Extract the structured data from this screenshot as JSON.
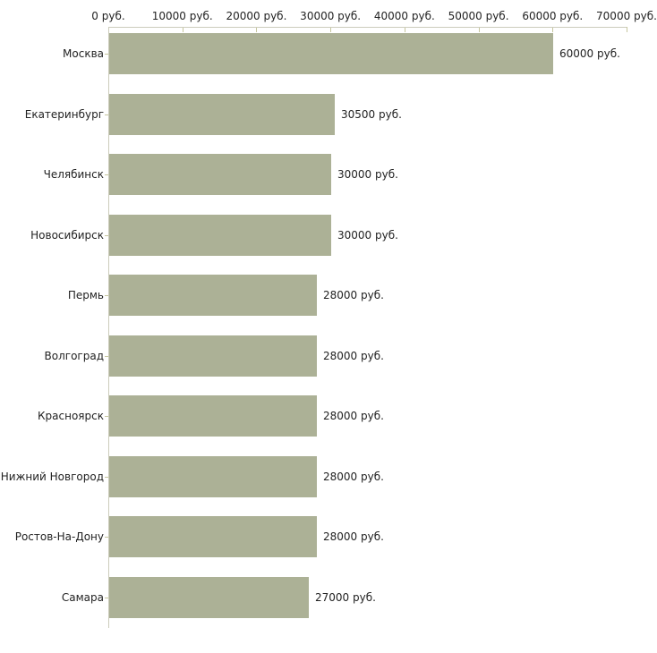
{
  "chart_data": {
    "type": "bar",
    "orientation": "horizontal",
    "title": "",
    "xlabel": "",
    "ylabel": "",
    "categories": [
      "Москва",
      "Екатеринбург",
      "Челябинск",
      "Новосибирск",
      "Пермь",
      "Волгоград",
      "Красноярск",
      "Нижний Новгород",
      "Ростов-На-Дону",
      "Самара"
    ],
    "values": [
      60000,
      30500,
      30000,
      30000,
      28000,
      28000,
      28000,
      28000,
      28000,
      27000
    ],
    "value_labels": [
      "60000 руб.",
      "30500 руб.",
      "30000 руб.",
      "30000 руб.",
      "28000 руб.",
      "28000 руб.",
      "28000 руб.",
      "28000 руб.",
      "28000 руб.",
      "27000 руб."
    ],
    "x_ticks": [
      0,
      10000,
      20000,
      30000,
      40000,
      50000,
      60000,
      70000
    ],
    "x_tick_labels": [
      "0 руб.",
      "10000 руб.",
      "20000 руб.",
      "30000 руб.",
      "40000 руб.",
      "50000 руб.",
      "60000 руб.",
      "70000 руб."
    ],
    "xlim": [
      0,
      70000
    ],
    "grid": false,
    "legend": false,
    "colors": {
      "bar_fill": "#acb196",
      "axis_line": "#ccccbb",
      "tick_mark": "#c6c69e",
      "text": "#222222",
      "background": "#ffffff"
    }
  }
}
